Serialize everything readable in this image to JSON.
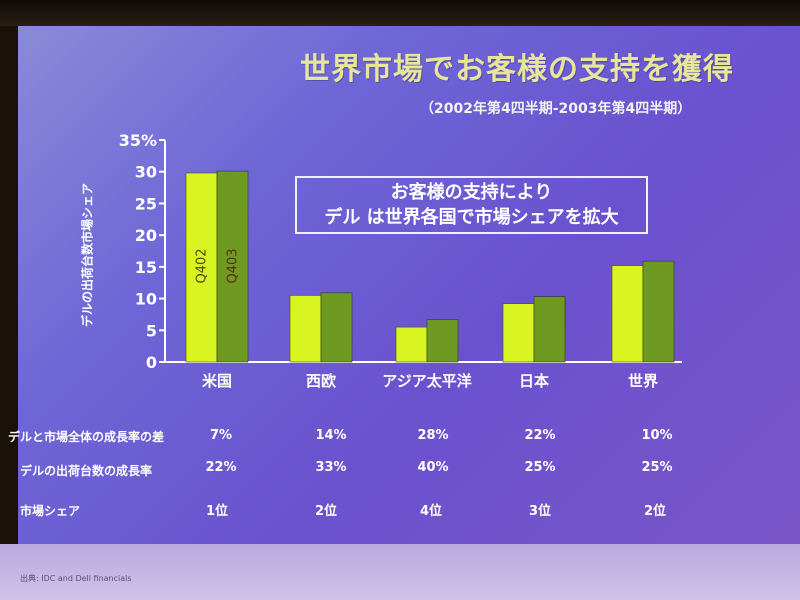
{
  "title": "世界市場でお客様の支持を獲得",
  "subtitle": "（2002年第4四半期-2003年第4四半期）",
  "note": [
    "お客様の支持により",
    "デル は世界各国で市場シェアを拡大"
  ],
  "source": "出典: IDC and Dell financials",
  "colors": {
    "q402": "#d9f521",
    "q403": "#6f9a22",
    "axis": "#ffffff"
  },
  "chart_data": {
    "type": "bar",
    "categories": [
      "米国",
      "西欧",
      "アジア太平洋",
      "日本",
      "世界"
    ],
    "series": [
      {
        "name": "Q402",
        "values": [
          29.8,
          10.5,
          5.5,
          9.2,
          15.2
        ]
      },
      {
        "name": "Q403",
        "values": [
          30.1,
          10.9,
          6.7,
          10.3,
          15.9
        ]
      }
    ],
    "ylabel": "デルの出荷台数市場シェア",
    "ylim": [
      0,
      35
    ],
    "yticks": [
      0,
      5,
      10,
      15,
      20,
      25,
      30
    ],
    "ytick_top_label": "35%",
    "grid": false
  },
  "table": {
    "rows": [
      {
        "label": "デルと市場全体の成長率の差",
        "values": [
          "7%",
          "14%",
          "28%",
          "22%",
          "10%"
        ]
      },
      {
        "label": "デルの出荷台数の成長率",
        "values": [
          "22%",
          "33%",
          "40%",
          "25%",
          "25%"
        ]
      },
      {
        "label": "市場シェア",
        "values": [
          "1位",
          "2位",
          "4位",
          "3位",
          "2位"
        ]
      }
    ]
  }
}
